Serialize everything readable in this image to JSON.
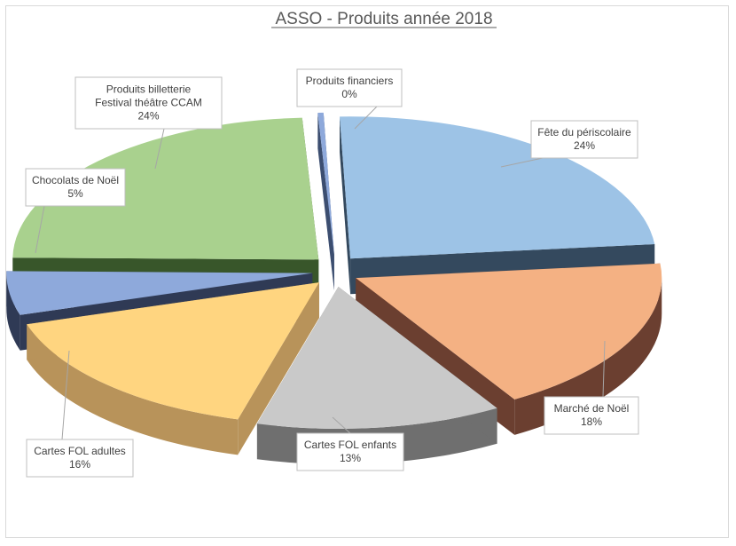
{
  "chart_data": {
    "type": "pie",
    "title": "ASSO - Produits année 2018",
    "slices": [
      {
        "label": "Fête du périscolaire",
        "value": 24,
        "value_label": "24%",
        "color": "#9DC3E6",
        "side": "#34495e"
      },
      {
        "label": "Marché de Noël",
        "value": 18,
        "value_label": "18%",
        "color": "#F4B183",
        "side": "#6B3F30"
      },
      {
        "label": "Cartes FOL enfants",
        "value": 13,
        "value_label": "13%",
        "color": "#C9C9C9",
        "side": "#6f6f6f"
      },
      {
        "label": "Cartes FOL adultes",
        "value": 16,
        "value_label": "16%",
        "color": "#FFD580",
        "side": "#B8935A"
      },
      {
        "label": "Chocolats de Noël",
        "value": 5,
        "value_label": "5%",
        "color": "#8EA9DB",
        "side": "#2F3A55"
      },
      {
        "label": "Produits billetterie Festival théâtre CCAM",
        "value": 24,
        "value_label": "24%",
        "color": "#A9D18E",
        "side": "#38562A"
      },
      {
        "label": "Produits financiers",
        "value": 0.3,
        "value_label": "0%",
        "color": "#8EA9DB",
        "side": "#3C4E70"
      }
    ]
  }
}
